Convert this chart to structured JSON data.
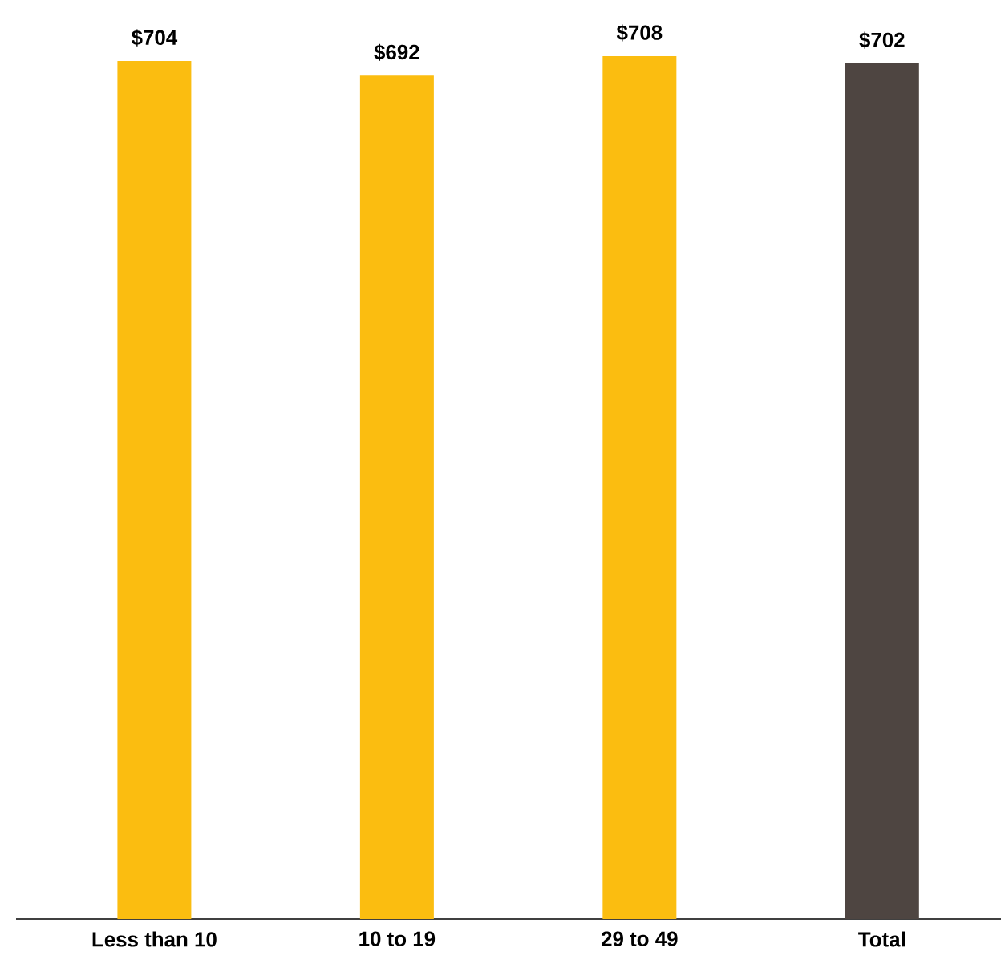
{
  "chart_data": {
    "type": "bar",
    "categories": [
      "Less than 10",
      "10 to 19",
      "29 to 49",
      "Total"
    ],
    "values": [
      704,
      692,
      708,
      702
    ],
    "value_labels": [
      "$704",
      "$692",
      "$708",
      "$702"
    ],
    "colors": [
      "#fbbd10",
      "#fbbd10",
      "#fbbd10",
      "#4e4541"
    ]
  }
}
